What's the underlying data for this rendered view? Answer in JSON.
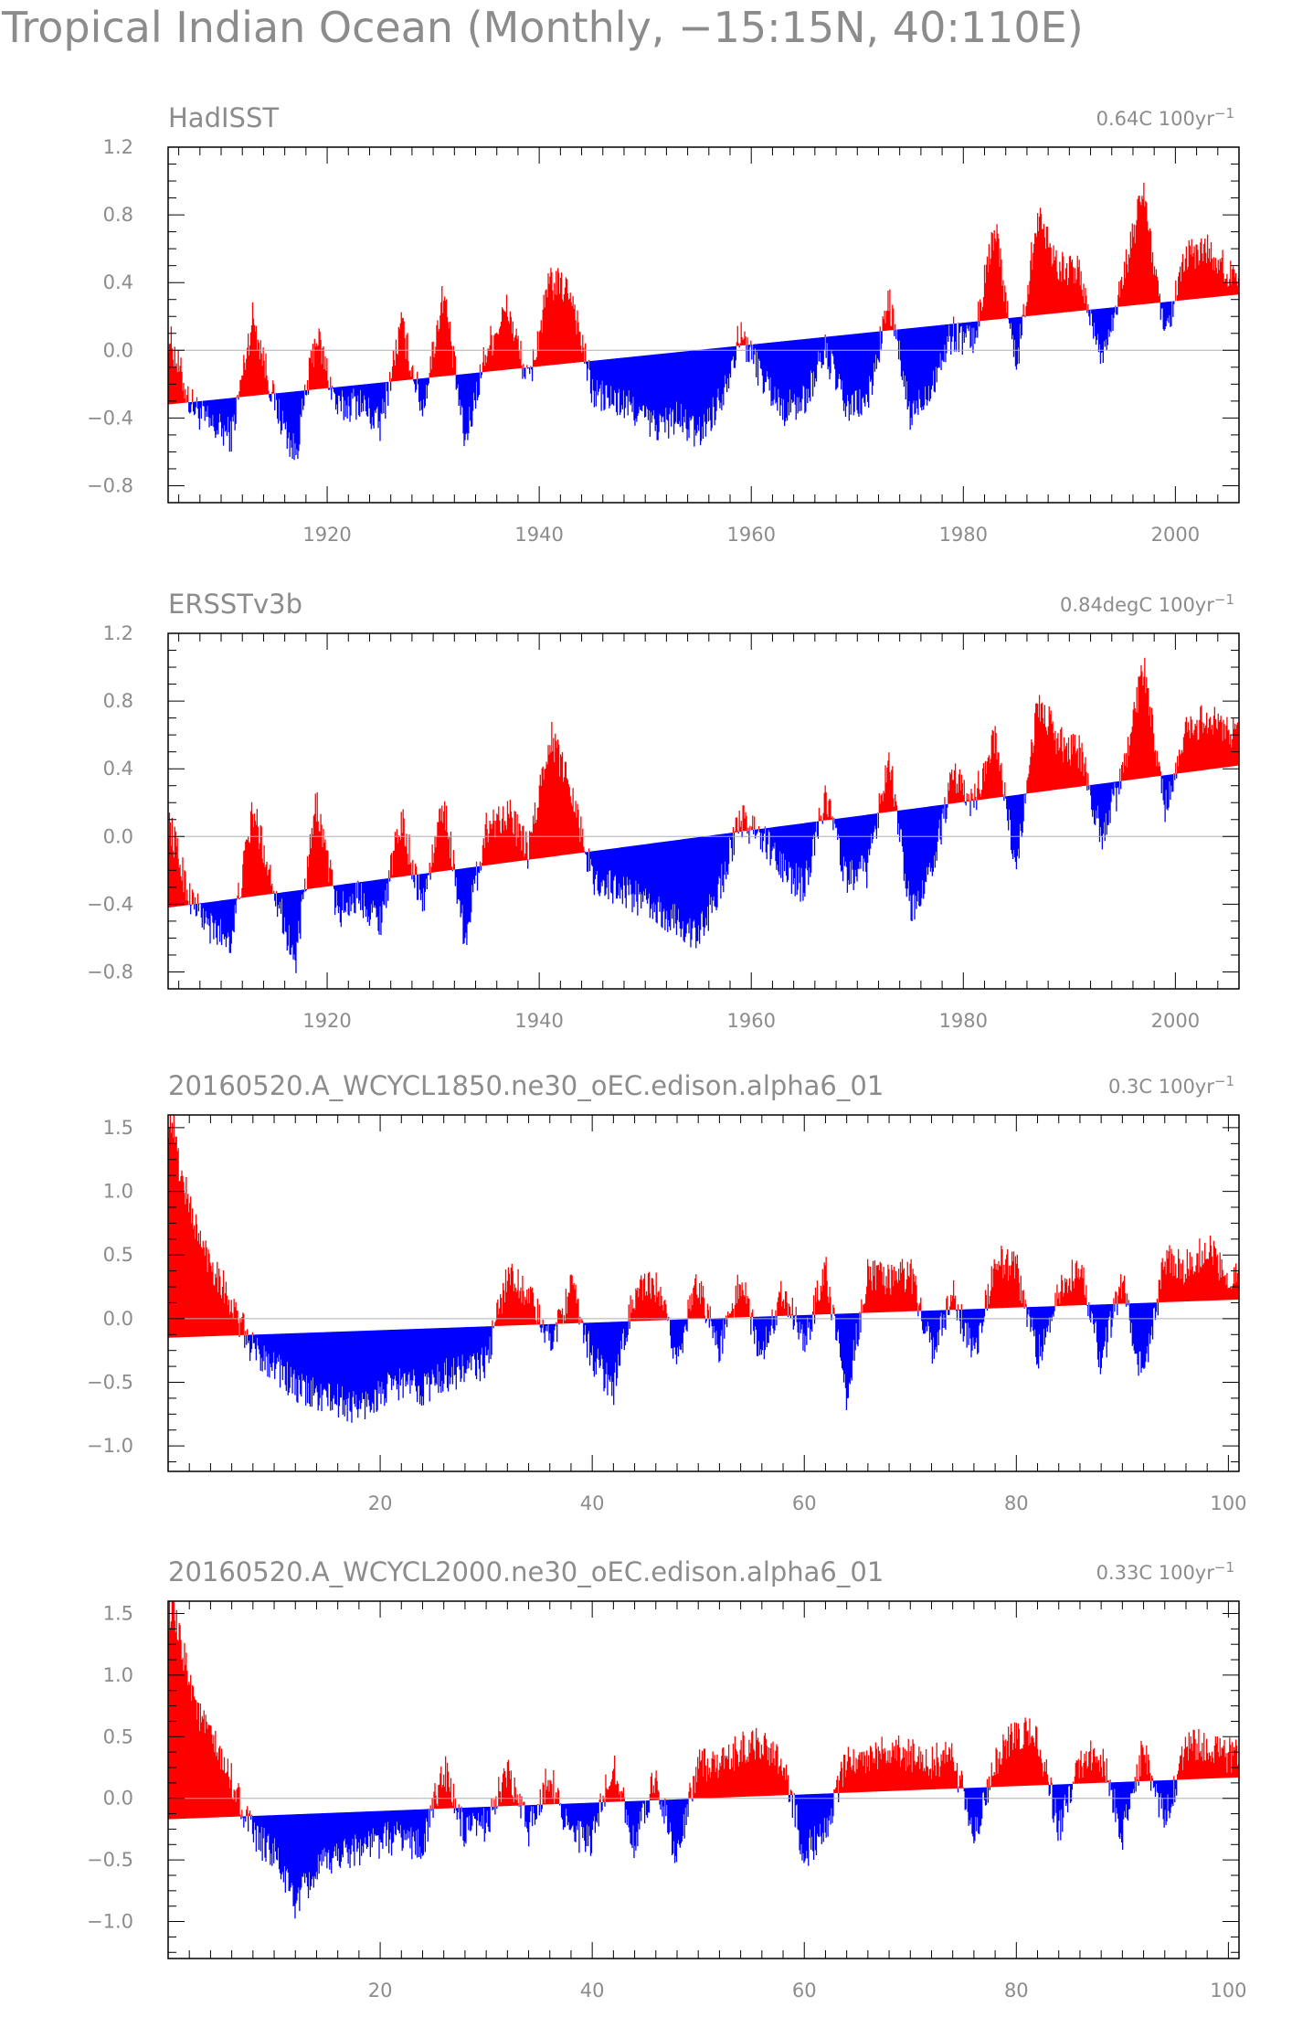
{
  "figure": {
    "title": "Tropical Indian Ocean (Monthly, −15:15N, 40:110E)"
  },
  "colors": {
    "positive": "#ff0000",
    "negative": "#0000ff",
    "axis": "#000000",
    "text": "#8c8c8c",
    "zero_line": "#b0b0b0"
  },
  "chart_data": [
    {
      "type": "bar",
      "title": "HadISST",
      "trend_label": "0.64C 100yr",
      "trend_unit_sup": "−1",
      "xlim": [
        1905,
        2006
      ],
      "ylim": [
        -0.9,
        1.2
      ],
      "xticks": [
        1920,
        1940,
        1960,
        1980,
        2000
      ],
      "xtick_labels": [
        "1920",
        "1940",
        "1960",
        "1980",
        "2000"
      ],
      "yticks": [
        -0.8,
        -0.4,
        0.0,
        0.4,
        0.8,
        1.2
      ],
      "ytick_labels": [
        "−0.8",
        "−0.4",
        "0.0",
        "0.4",
        "0.8",
        "1.2"
      ],
      "trend_line": {
        "start": [
          1905,
          -0.32
        ],
        "end": [
          2006,
          0.33
        ]
      },
      "series_x": [
        1905,
        1907,
        1909,
        1911,
        1913,
        1915,
        1917,
        1919,
        1921,
        1923,
        1925,
        1927,
        1929,
        1931,
        1933,
        1935,
        1937,
        1939,
        1941,
        1943,
        1945,
        1947,
        1949,
        1951,
        1953,
        1955,
        1957,
        1959,
        1961,
        1963,
        1965,
        1967,
        1969,
        1971,
        1973,
        1975,
        1977,
        1979,
        1981,
        1983,
        1985,
        1987,
        1989,
        1991,
        1993,
        1995,
        1997,
        1999,
        2001,
        2003,
        2005
      ],
      "series_y": [
        0.1,
        -0.3,
        -0.45,
        -0.5,
        0.2,
        -0.3,
        -0.62,
        0.1,
        -0.35,
        -0.3,
        -0.45,
        0.15,
        -0.35,
        0.35,
        -0.55,
        0.0,
        0.25,
        -0.2,
        0.4,
        0.35,
        -0.25,
        -0.3,
        -0.35,
        -0.45,
        -0.4,
        -0.5,
        -0.3,
        0.1,
        -0.15,
        -0.35,
        -0.3,
        0.0,
        -0.35,
        -0.3,
        0.3,
        -0.4,
        -0.2,
        0.1,
        0.05,
        0.75,
        -0.1,
        0.8,
        0.5,
        0.45,
        -0.05,
        0.4,
        0.95,
        0.05,
        0.55,
        0.6,
        0.45
      ]
    },
    {
      "type": "bar",
      "title": "ERSSTv3b",
      "trend_label": "0.84degC 100yr",
      "trend_unit_sup": "−1",
      "xlim": [
        1905,
        2006
      ],
      "ylim": [
        -0.9,
        1.2
      ],
      "xticks": [
        1920,
        1940,
        1960,
        1980,
        2000
      ],
      "xtick_labels": [
        "1920",
        "1940",
        "1960",
        "1980",
        "2000"
      ],
      "yticks": [
        -0.8,
        -0.4,
        0.0,
        0.4,
        0.8,
        1.2
      ],
      "ytick_labels": [
        "−0.8",
        "−0.4",
        "0.0",
        "0.4",
        "0.8",
        "1.2"
      ],
      "trend_line": {
        "start": [
          1905,
          -0.42
        ],
        "end": [
          2006,
          0.42
        ]
      },
      "series_x": [
        1905,
        1907,
        1909,
        1911,
        1913,
        1915,
        1917,
        1919,
        1921,
        1923,
        1925,
        1927,
        1929,
        1931,
        1933,
        1935,
        1937,
        1939,
        1941,
        1943,
        1945,
        1947,
        1949,
        1951,
        1953,
        1955,
        1957,
        1959,
        1961,
        1963,
        1965,
        1967,
        1969,
        1971,
        1973,
        1975,
        1977,
        1979,
        1981,
        1983,
        1985,
        1987,
        1989,
        1991,
        1993,
        1995,
        1997,
        1999,
        2001,
        2003,
        2005
      ],
      "series_y": [
        0.1,
        -0.35,
        -0.55,
        -0.6,
        0.15,
        -0.3,
        -0.75,
        0.2,
        -0.45,
        -0.35,
        -0.5,
        0.1,
        -0.4,
        0.2,
        -0.6,
        0.05,
        0.15,
        -0.1,
        0.6,
        0.3,
        -0.25,
        -0.3,
        -0.35,
        -0.45,
        -0.5,
        -0.6,
        -0.3,
        0.1,
        0.0,
        -0.2,
        -0.3,
        0.25,
        -0.25,
        -0.2,
        0.5,
        -0.45,
        -0.2,
        0.35,
        0.2,
        0.6,
        -0.2,
        0.8,
        0.55,
        0.5,
        0.0,
        0.35,
        1.0,
        0.15,
        0.6,
        0.7,
        0.6
      ]
    },
    {
      "type": "bar",
      "title": "20160520.A_WCYCL1850.ne30_oEC.edison.alpha6_01",
      "trend_label": "0.3C 100yr",
      "trend_unit_sup": "−1",
      "xlim": [
        0,
        101
      ],
      "ylim": [
        -1.2,
        1.6
      ],
      "xticks": [
        20,
        40,
        60,
        80,
        100
      ],
      "xtick_labels": [
        "20",
        "40",
        "60",
        "80",
        "100"
      ],
      "yticks": [
        -1.0,
        -0.5,
        0.0,
        0.5,
        1.0,
        1.5
      ],
      "ytick_labels": [
        "−1.0",
        "−0.5",
        "0.0",
        "0.5",
        "1.0",
        "1.5"
      ],
      "trend_line": {
        "start": [
          0,
          -0.15
        ],
        "end": [
          101,
          0.15
        ]
      },
      "series_x": [
        0.5,
        1,
        2,
        3,
        4,
        5,
        6,
        8,
        10,
        12,
        14,
        16,
        18,
        20,
        22,
        24,
        26,
        28,
        30,
        32,
        34,
        36,
        38,
        40,
        42,
        44,
        46,
        48,
        50,
        52,
        54,
        56,
        58,
        60,
        62,
        64,
        66,
        68,
        70,
        72,
        74,
        76,
        78,
        80,
        82,
        84,
        86,
        88,
        90,
        92,
        94,
        96,
        98,
        100
      ],
      "series_y": [
        1.55,
        1.2,
        0.9,
        0.6,
        0.45,
        0.3,
        0.1,
        -0.25,
        -0.35,
        -0.55,
        -0.6,
        -0.65,
        -0.7,
        -0.6,
        -0.5,
        -0.55,
        -0.45,
        -0.4,
        -0.35,
        0.35,
        0.2,
        -0.2,
        0.25,
        -0.3,
        -0.55,
        0.2,
        0.25,
        -0.3,
        0.3,
        -0.25,
        0.3,
        -0.3,
        0.25,
        -0.2,
        0.4,
        -0.6,
        0.35,
        0.3,
        0.35,
        -0.25,
        0.2,
        -0.3,
        0.45,
        0.4,
        -0.3,
        0.2,
        0.45,
        -0.35,
        0.3,
        -0.5,
        0.45,
        0.4,
        0.55,
        0.35
      ]
    },
    {
      "type": "bar",
      "title": "20160520.A_WCYCL2000.ne30_oEC.edison.alpha6_01",
      "trend_label": "0.33C 100yr",
      "trend_unit_sup": "−1",
      "xlim": [
        0,
        101
      ],
      "ylim": [
        -1.3,
        1.6
      ],
      "xticks": [
        20,
        40,
        60,
        80,
        100
      ],
      "xtick_labels": [
        "20",
        "40",
        "60",
        "80",
        "100"
      ],
      "yticks": [
        -1.0,
        -0.5,
        0.0,
        0.5,
        1.0,
        1.5
      ],
      "ytick_labels": [
        "−1.0",
        "−0.5",
        "0.0",
        "0.5",
        "1.0",
        "1.5"
      ],
      "trend_line": {
        "start": [
          0,
          -0.17
        ],
        "end": [
          101,
          0.17
        ]
      },
      "series_x": [
        0.5,
        1,
        2,
        3,
        4,
        5,
        6,
        8,
        10,
        12,
        14,
        16,
        18,
        20,
        22,
        24,
        26,
        28,
        30,
        32,
        34,
        36,
        38,
        40,
        42,
        44,
        46,
        48,
        50,
        52,
        54,
        56,
        58,
        60,
        62,
        64,
        66,
        68,
        70,
        72,
        74,
        76,
        78,
        80,
        82,
        84,
        86,
        88,
        90,
        92,
        94,
        96,
        98,
        100
      ],
      "series_y": [
        1.5,
        1.3,
        1.0,
        0.65,
        0.5,
        0.3,
        0.15,
        -0.3,
        -0.45,
        -0.85,
        -0.6,
        -0.45,
        -0.4,
        -0.35,
        -0.3,
        -0.4,
        0.25,
        -0.3,
        -0.2,
        0.2,
        -0.25,
        0.2,
        -0.3,
        -0.35,
        0.3,
        -0.4,
        0.2,
        -0.5,
        0.3,
        0.25,
        0.4,
        0.45,
        0.3,
        -0.45,
        -0.25,
        0.3,
        0.35,
        0.4,
        0.35,
        0.3,
        0.35,
        -0.3,
        0.3,
        0.55,
        0.5,
        -0.25,
        0.3,
        0.35,
        -0.3,
        0.4,
        -0.2,
        0.45,
        0.4,
        0.35
      ]
    }
  ]
}
